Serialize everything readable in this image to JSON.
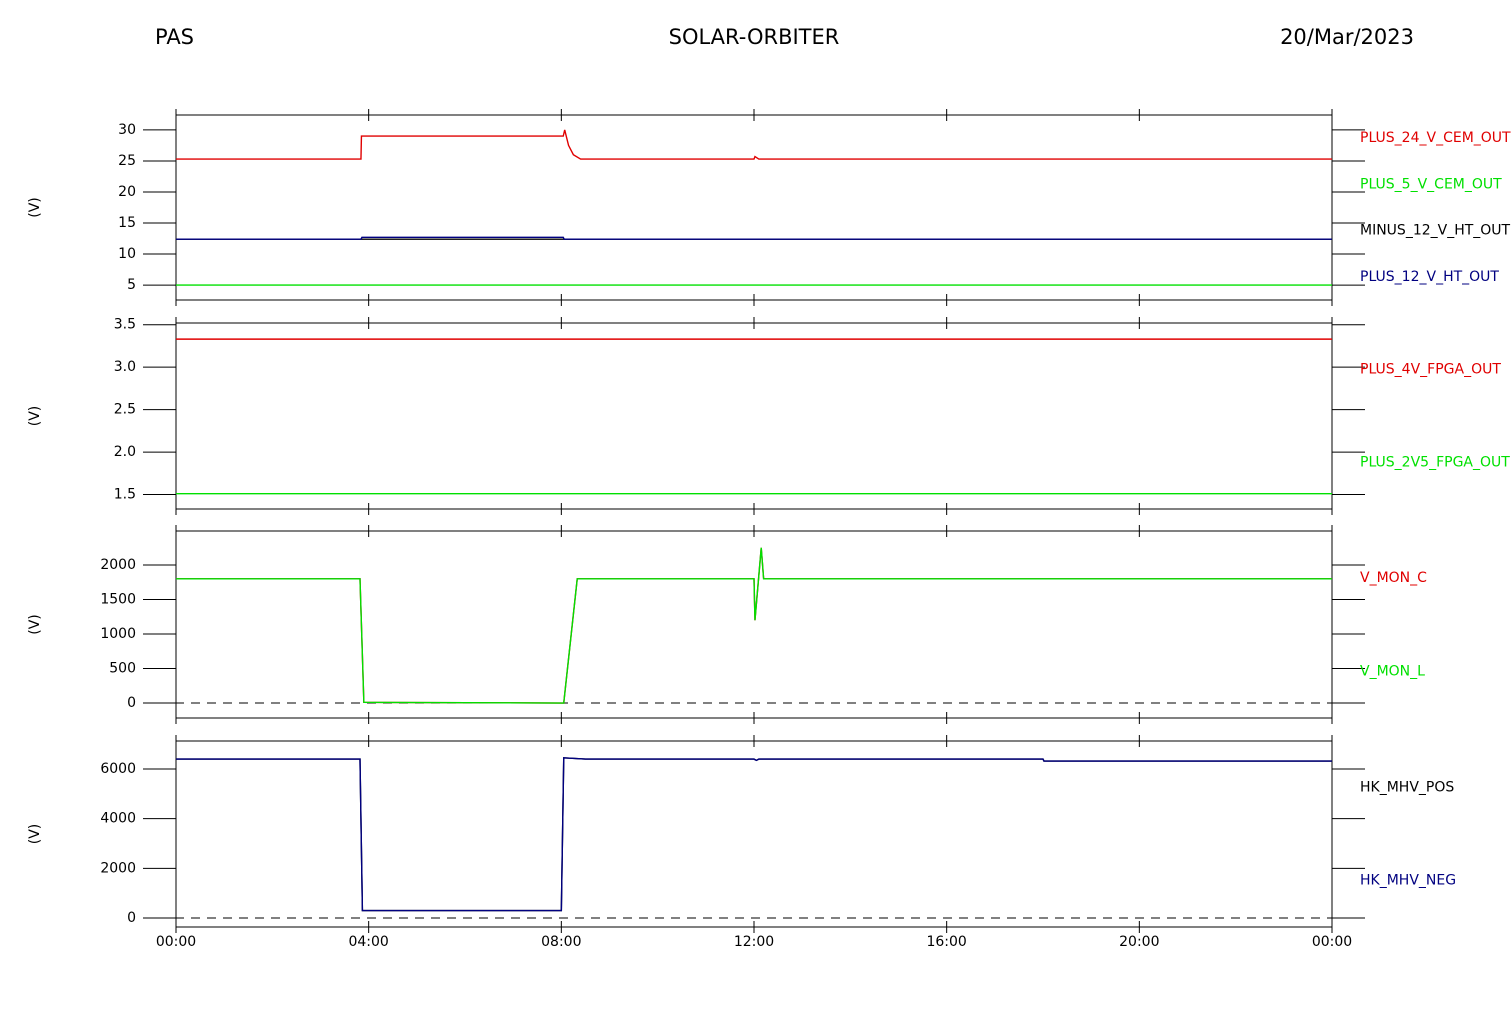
{
  "header": {
    "left": "PAS",
    "center": "SOLAR-ORBITER",
    "right": "20/Mar/2023"
  },
  "chart_data": [
    {
      "type": "line",
      "ylabel": "(V)",
      "xlim": [
        0,
        24
      ],
      "ylim": [
        2.6,
        32.4
      ],
      "yticks": [
        5,
        10,
        15,
        20,
        25,
        30
      ],
      "xticks": [
        {
          "value": 0,
          "label": "00:00"
        },
        {
          "value": 4,
          "label": "04:00"
        },
        {
          "value": 8,
          "label": "08:00"
        },
        {
          "value": 12,
          "label": "12:00"
        },
        {
          "value": 16,
          "label": "16:00"
        },
        {
          "value": 20,
          "label": "20:00"
        },
        {
          "value": 24,
          "label": "00:00"
        }
      ],
      "series": [
        {
          "name": "PLUS_24_V_CEM_OUT",
          "color": "#e00000",
          "x": [
            0,
            3.84,
            3.85,
            8.04,
            8.07,
            8.15,
            8.25,
            8.4,
            12.0,
            12.02,
            12.1,
            24
          ],
          "values": [
            25.3,
            25.3,
            29,
            29,
            30,
            27.5,
            26,
            25.3,
            25.3,
            25.7,
            25.3,
            25.3
          ]
        },
        {
          "name": "PLUS_5_V_CEM_OUT",
          "color": "#00e000",
          "x": [
            0,
            24
          ],
          "values": [
            5,
            5
          ]
        },
        {
          "name": "MINUS_12_V_HT_OUT",
          "color": "#000000",
          "x": [
            0,
            24
          ],
          "values": [
            12.4,
            12.4
          ]
        },
        {
          "name": "PLUS_12_V_HT_OUT",
          "color": "#000080",
          "x": [
            0,
            3.84,
            3.86,
            8.04,
            8.06,
            24
          ],
          "values": [
            12.4,
            12.4,
            12.7,
            12.7,
            12.4,
            12.4
          ]
        }
      ]
    },
    {
      "type": "line",
      "ylabel": "(V)",
      "xlim": [
        0,
        24
      ],
      "ylim": [
        1.33,
        3.52
      ],
      "yticks": [
        1.5,
        {
          "value": 2,
          "label": "2.0"
        },
        2.5,
        {
          "value": 3,
          "label": "3.0"
        },
        3.5
      ],
      "xticks": [
        {
          "value": 0,
          "label": "00:00"
        },
        {
          "value": 4,
          "label": "04:00"
        },
        {
          "value": 8,
          "label": "08:00"
        },
        {
          "value": 12,
          "label": "12:00"
        },
        {
          "value": 16,
          "label": "16:00"
        },
        {
          "value": 20,
          "label": "20:00"
        },
        {
          "value": 24,
          "label": "00:00"
        }
      ],
      "series": [
        {
          "name": "PLUS_4V_FPGA_OUT",
          "color": "#e00000",
          "x": [
            0,
            24
          ],
          "values": [
            3.33,
            3.33
          ]
        },
        {
          "name": "PLUS_2V5_FPGA_OUT",
          "color": "#00e000",
          "x": [
            0,
            24
          ],
          "values": [
            1.51,
            1.51
          ]
        }
      ]
    },
    {
      "type": "line",
      "ylabel": "(V)",
      "xlim": [
        0,
        24
      ],
      "ylim": [
        -217,
        2493
      ],
      "zero_line": true,
      "yticks": [
        0,
        500,
        1000,
        1500,
        2000
      ],
      "xticks": [
        {
          "value": 0,
          "label": "00:00"
        },
        {
          "value": 4,
          "label": "04:00"
        },
        {
          "value": 8,
          "label": "08:00"
        },
        {
          "value": 12,
          "label": "12:00"
        },
        {
          "value": 16,
          "label": "16:00"
        },
        {
          "value": 20,
          "label": "20:00"
        },
        {
          "value": 24,
          "label": "00:00"
        }
      ],
      "series": [
        {
          "name": "V_MON_C",
          "color": "#e00000",
          "x": [
            0,
            3.82,
            3.9,
            8.05,
            8.33,
            12.0,
            12.02,
            12.15,
            12.2,
            24
          ],
          "values": [
            1800,
            1800,
            10,
            0,
            1800,
            1800,
            1200,
            2250,
            1800,
            1800
          ]
        },
        {
          "name": "V_MON_L",
          "color": "#00e000",
          "x": [
            0,
            3.82,
            3.9,
            8.05,
            8.33,
            12.0,
            12.02,
            12.15,
            12.2,
            24
          ],
          "values": [
            1800,
            1800,
            10,
            0,
            1800,
            1800,
            1200,
            2250,
            1800,
            1800
          ]
        }
      ]
    },
    {
      "type": "line",
      "ylabel": "(V)",
      "xlim": [
        0,
        24
      ],
      "ylim": [
        -362,
        7128
      ],
      "zero_line": true,
      "yticks": [
        0,
        2000,
        4000,
        6000
      ],
      "xticks": [
        {
          "value": 0,
          "label": "00:00"
        },
        {
          "value": 4,
          "label": "04:00"
        },
        {
          "value": 8,
          "label": "08:00"
        },
        {
          "value": 12,
          "label": "12:00"
        },
        {
          "value": 16,
          "label": "16:00"
        },
        {
          "value": 20,
          "label": "20:00"
        },
        {
          "value": 24,
          "label": "00:00"
        }
      ],
      "series": [
        {
          "name": "HK_MHV_POS",
          "color": "#000000",
          "x": [
            0,
            3.82,
            3.87,
            8.0,
            8.05,
            8.5,
            12.0,
            12.05,
            12.1,
            18.0,
            18.02,
            24
          ],
          "values": [
            6400,
            6400,
            300,
            300,
            6450,
            6400,
            6400,
            6350,
            6400,
            6400,
            6320,
            6320
          ]
        },
        {
          "name": "HK_MHV_NEG",
          "color": "#000080",
          "x": [
            0,
            3.82,
            3.87,
            8.0,
            8.05,
            8.5,
            12.0,
            12.05,
            12.1,
            18.0,
            18.02,
            24
          ],
          "values": [
            6400,
            6400,
            300,
            300,
            6450,
            6400,
            6400,
            6350,
            6400,
            6400,
            6320,
            6320
          ]
        }
      ]
    }
  ]
}
